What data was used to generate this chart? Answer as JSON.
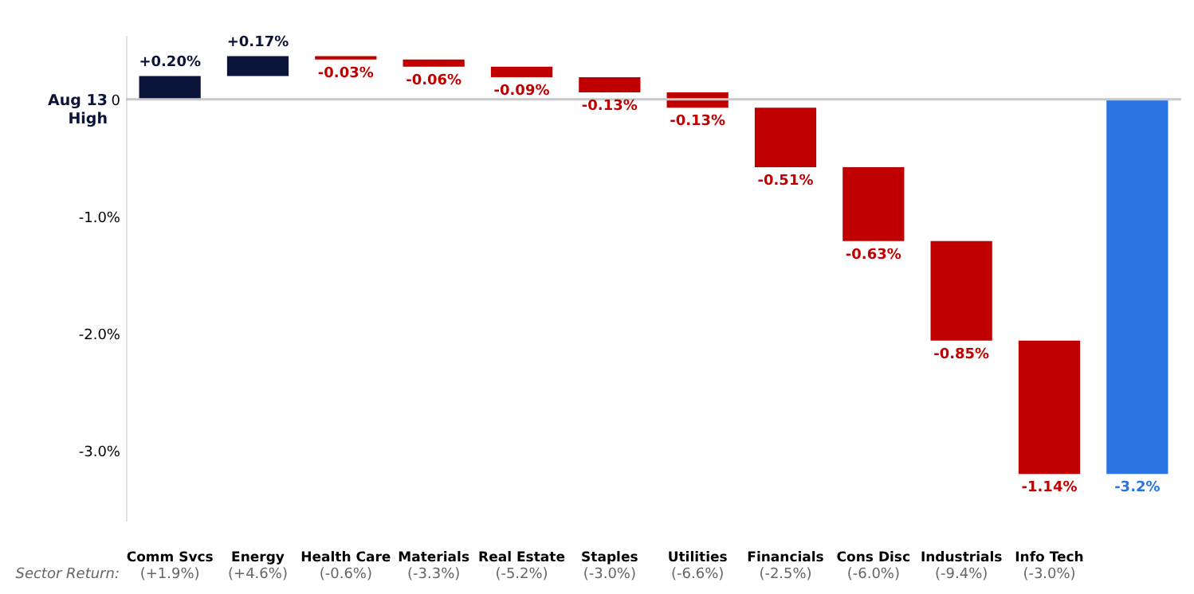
{
  "chart_data": {
    "type": "bar",
    "categories": [
      "Comm Svcs",
      "Energy",
      "Health Care",
      "Materials",
      "Real Estate",
      "Staples",
      "Utilities",
      "Financials",
      "Cons Disc",
      "Industrials",
      "Info Tech",
      null
    ],
    "values": [
      0.2,
      0.17,
      -0.03,
      -0.06,
      -0.09,
      -0.13,
      -0.13,
      -0.51,
      -0.63,
      -0.85,
      -1.14,
      -3.2
    ],
    "base": [
      0,
      0.2,
      0.37,
      0.34,
      0.28,
      0.19,
      0.06,
      -0.07,
      -0.58,
      -1.21,
      -2.06,
      0
    ],
    "colors": [
      "#0b1439",
      "#0b1439",
      "#c00000",
      "#c00000",
      "#c00000",
      "#c00000",
      "#c00000",
      "#c00000",
      "#c00000",
      "#c00000",
      "#c00000",
      "#2a74e4"
    ],
    "value_labels": [
      "+0.20%",
      "+0.17%",
      "-0.03%",
      "-0.06%",
      "-0.09%",
      "-0.13%",
      "-0.13%",
      "-0.51%",
      "-0.63%",
      "-0.85%",
      "-1.14%",
      "-3.2%"
    ],
    "ylabel": "Aug 13 High",
    "ylim": [
      -3.6,
      0.55
    ],
    "yticks": [
      {
        "value": 0,
        "label": "0"
      },
      {
        "value": -1,
        "label": "-1.0%"
      },
      {
        "value": -2,
        "label": "-2.0%"
      },
      {
        "value": -3,
        "label": "-3.0%"
      }
    ],
    "ref_lines": [
      {
        "axis": "y",
        "value": 0,
        "color": "#c8c8c8"
      }
    ],
    "annotations": [
      "Sector Return:",
      "(+1.9%)",
      "(+4.6%)",
      "(-0.6%)",
      "(-3.3%)",
      "(-5.2%)",
      "(-3.0%)",
      "(-6.6%)",
      "(-2.5%)",
      "(-6.0%)",
      "(-9.4%)",
      "(-3.0%)"
    ],
    "grid": false
  }
}
